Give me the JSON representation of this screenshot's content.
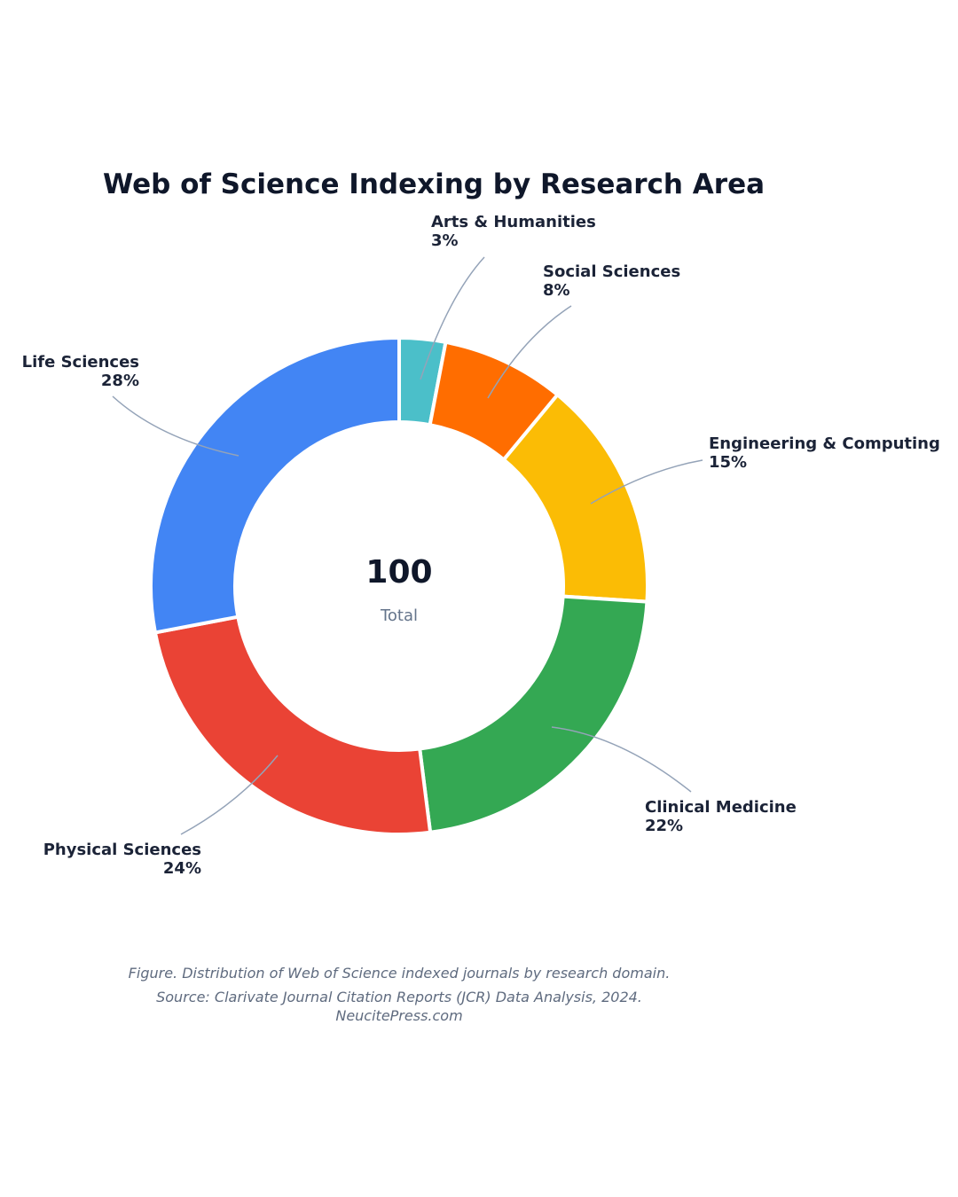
{
  "chart_data": {
    "type": "pie",
    "title": "Web of Science Indexing by Research Area",
    "center": {
      "value": "100",
      "label": "Total"
    },
    "slices": [
      {
        "label": "Arts & Humanities",
        "value": 3,
        "value_label": "3%",
        "color": "#4bbfc9"
      },
      {
        "label": "Social Sciences",
        "value": 8,
        "value_label": "8%",
        "color": "#ff6d00"
      },
      {
        "label": "Engineering & Computing",
        "value": 15,
        "value_label": "15%",
        "color": "#fbbc05"
      },
      {
        "label": "Clinical Medicine",
        "value": 22,
        "value_label": "22%",
        "color": "#34a853"
      },
      {
        "label": "Physical Sciences",
        "value": 24,
        "value_label": "24%",
        "color": "#ea4335"
      },
      {
        "label": "Life Sciences",
        "value": 28,
        "value_label": "28%",
        "color": "#4285f4"
      }
    ]
  },
  "caption": {
    "line1": "Figure. Distribution of Web of Science indexed journals by research domain.",
    "line2": "Source: Clarivate Journal Citation Reports (JCR) Data Analysis, 2024.",
    "line3": "NeucitePress.com"
  }
}
